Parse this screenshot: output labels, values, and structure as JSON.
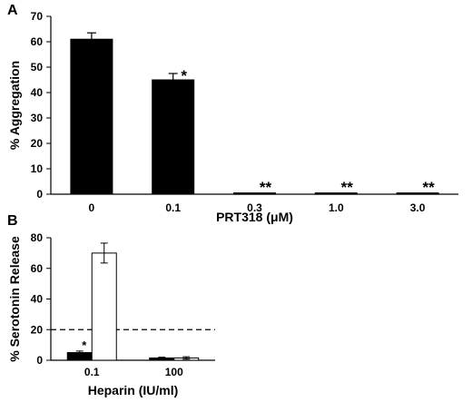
{
  "figure": {
    "panels": [
      {
        "label": "A"
      },
      {
        "label": "B"
      }
    ]
  },
  "chart_data": [
    {
      "panel": "A",
      "type": "bar",
      "title": "",
      "xlabel": "PRT318 (μM)",
      "ylabel": "% Aggregation",
      "categories": [
        "0",
        "0.1",
        "0.3",
        "1.0",
        "3.0"
      ],
      "series": [
        {
          "values": [
            61,
            45,
            0.5,
            0.5,
            0.5
          ],
          "errors": [
            2.5,
            2.5,
            0,
            0,
            0
          ],
          "color": "#000000"
        }
      ],
      "annotations": [
        "",
        "*",
        "**",
        "**",
        "**"
      ],
      "ylim": [
        0,
        70
      ],
      "yticks": [
        0,
        10,
        20,
        30,
        40,
        50,
        60,
        70
      ],
      "grid": false,
      "legend": "none"
    },
    {
      "panel": "B",
      "type": "bar",
      "title": "",
      "xlabel": "Heparin (IU/ml)",
      "ylabel": "% Serotonin Release",
      "categories": [
        "0.1",
        "100"
      ],
      "series": [
        {
          "values": [
            5,
            1.5
          ],
          "errors": [
            1,
            0.5
          ],
          "color": "#000000",
          "annotations": [
            "*",
            ""
          ]
        },
        {
          "values": [
            70,
            1.5
          ],
          "errors": [
            6.5,
            0.8
          ],
          "color": "#ffffff"
        }
      ],
      "reference_line": {
        "y": 20,
        "style": "dashed"
      },
      "ylim": [
        0,
        80
      ],
      "yticks": [
        0,
        20,
        40,
        60,
        80
      ],
      "grid": false,
      "legend": "none"
    }
  ]
}
